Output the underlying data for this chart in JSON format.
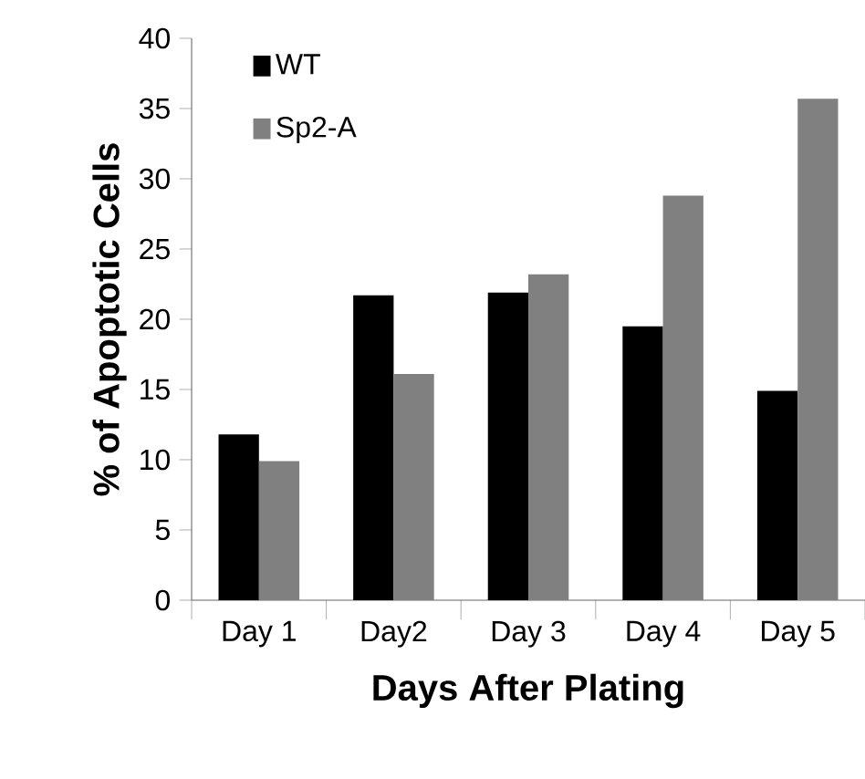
{
  "chart_data": {
    "type": "bar",
    "xlabel": "Days After Plating",
    "ylabel": "% of Apoptotic Cells",
    "categories": [
      "Day 1",
      "Day2",
      "Day 3",
      "Day 4",
      "Day 5"
    ],
    "series": [
      {
        "name": "WT",
        "color": "#000000",
        "values": [
          11.8,
          21.7,
          21.9,
          19.5,
          14.9
        ]
      },
      {
        "name": "Sp2-A",
        "color": "#808080",
        "values": [
          9.9,
          16.1,
          23.2,
          28.8,
          35.7
        ]
      }
    ],
    "ylim": [
      0,
      40
    ],
    "yticks": [
      0,
      5,
      10,
      15,
      20,
      25,
      30,
      35,
      40
    ],
    "grid": false,
    "legend": "top left"
  }
}
